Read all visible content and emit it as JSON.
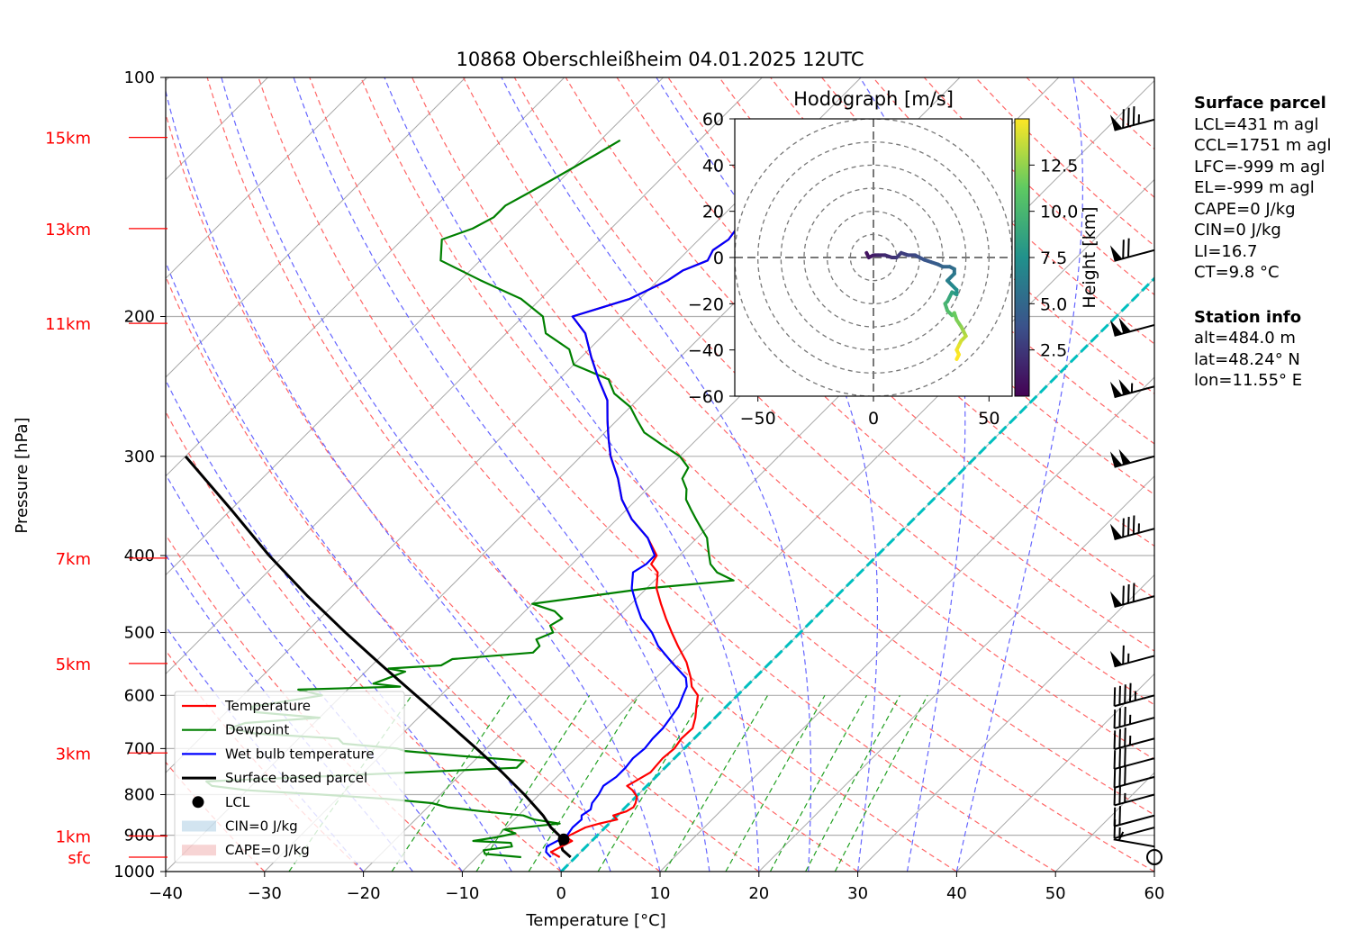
{
  "title": "10868 Oberschleißheim 04.01.2025 12UTC",
  "colors": {
    "temperature": "#ff0000",
    "dewpoint": "#008000",
    "wetbulb": "#0000ff",
    "parcel": "#000000",
    "dry_adiabat": "#ff6666",
    "moist_adiabat": "#6666ff",
    "mixing_ratio": "#22a022",
    "isotherm": "#999999",
    "zero_isotherm": "#00bfbf",
    "height_labels": "#ff0000"
  },
  "chart_data": {
    "type": "line",
    "title": "10868 Oberschleißheim 04.01.2025 12UTC",
    "xlabel": "Temperature [°C]",
    "ylabel": "Pressure [hPa]",
    "xlim": [
      -40,
      60
    ],
    "ylim": [
      1000,
      100
    ],
    "y_scale": "log",
    "skew": "45° isotherms",
    "grid": true,
    "x_ticks": [
      "−40",
      "−30",
      "−20",
      "−10",
      "0",
      "10",
      "20",
      "30",
      "40",
      "50",
      "60"
    ],
    "y_ticks": [
      "100",
      "200",
      "300",
      "400",
      "500",
      "600",
      "700",
      "800",
      "900",
      "1000"
    ],
    "height_labels": [
      {
        "label": "15km",
        "p": 119
      },
      {
        "label": "13km",
        "p": 155
      },
      {
        "label": "11km",
        "p": 204
      },
      {
        "label": "7km",
        "p": 403
      },
      {
        "label": "5km",
        "p": 547
      },
      {
        "label": "3km",
        "p": 709
      },
      {
        "label": "1km",
        "p": 902
      },
      {
        "label": "sfc",
        "p": 959
      }
    ],
    "series": [
      {
        "name": "Temperature",
        "p": [
          959,
          945,
          930,
          915,
          905,
          880,
          870,
          860,
          850,
          840,
          830,
          820,
          805,
          790,
          780,
          765,
          750,
          720,
          700,
          680,
          660,
          640,
          620,
          600,
          585,
          570,
          545,
          520,
          500,
          480,
          460,
          440,
          420,
          410,
          400,
          380,
          360,
          340,
          320,
          300,
          285,
          270,
          255,
          240,
          225,
          210,
          200,
          195,
          190,
          185,
          180,
          175,
          170,
          165,
          160,
          155,
          150,
          145,
          140,
          135,
          130,
          125,
          120,
          117
        ],
        "t": [
          -1.6,
          -3.0,
          -2.5,
          -2.0,
          -3.0,
          -2.0,
          -1.0,
          0.4,
          -0.4,
          0.5,
          0.8,
          0.6,
          0.1,
          -1.0,
          -2.0,
          -1.5,
          -1.0,
          -1.2,
          -1.0,
          -1.3,
          -1.2,
          -2.0,
          -3.0,
          -4.0,
          -5.5,
          -6.5,
          -8.5,
          -11.0,
          -13.0,
          -15.0,
          -17.0,
          -19.0,
          -20.5,
          -22.0,
          -22.3,
          -25.0,
          -28.5,
          -31.5,
          -34.0,
          -37.0,
          -39.0,
          -41.0,
          -43.0,
          -46.0,
          -49.0,
          -52.0,
          -55.0,
          -53.0,
          -51.0,
          -50.0,
          -49.0,
          -48.5,
          -47.0,
          -47.5,
          -47.0,
          -47.3,
          -44.0,
          -42.0,
          -40.0,
          -39.0,
          -38.0,
          -37.0,
          -35.0,
          -36.0
        ]
      },
      {
        "name": "Dewpoint",
        "p": [
          959,
          950,
          940,
          930,
          920,
          915,
          905,
          895,
          885,
          870,
          860,
          850,
          840,
          830,
          820,
          810,
          800,
          790,
          780,
          770,
          760,
          750,
          740,
          725,
          715,
          705,
          700,
          690,
          680,
          670,
          660,
          650,
          640,
          630,
          620,
          610,
          600,
          590,
          585,
          580,
          570,
          560,
          555,
          550,
          540,
          530,
          520,
          510,
          500,
          490,
          480,
          470,
          460,
          450,
          440,
          430,
          420,
          410,
          400,
          390,
          380,
          370,
          360,
          350,
          340,
          330,
          320,
          310,
          300,
          290,
          280,
          270,
          260,
          250,
          240,
          230,
          220,
          210,
          200,
          190,
          180,
          170,
          160,
          155,
          150,
          145,
          140,
          135,
          130,
          125,
          120
        ],
        "t": [
          -5.5,
          -9.5,
          -10.0,
          -7.5,
          -8.0,
          -12.0,
          -10.0,
          -8.5,
          -10.0,
          -5.0,
          -8.0,
          -9.5,
          -14.0,
          -18.0,
          -20.0,
          -25.0,
          -32.0,
          -40.0,
          -44.0,
          -45.0,
          -35.0,
          -25.0,
          -15.0,
          -15.0,
          -22.0,
          -28.0,
          -29.0,
          -35.0,
          -36.0,
          -45.0,
          -48.0,
          -47.0,
          -40.0,
          -47.0,
          -48.0,
          -45.0,
          -42.0,
          -45.0,
          -35.0,
          -38.0,
          -37.0,
          -36.0,
          -38.0,
          -33.0,
          -32.5,
          -25.0,
          -25.0,
          -26.0,
          -25.0,
          -26.0,
          -25.5,
          -27.0,
          -30.0,
          -25.0,
          -20.0,
          -12.0,
          -14.5,
          -16.0,
          -17.0,
          -18.0,
          -19.0,
          -20.5,
          -22.0,
          -23.5,
          -25.0,
          -26.0,
          -27.5,
          -28.0,
          -30.0,
          -33.0,
          -36.0,
          -38.0,
          -40.0,
          -43.0,
          -45.0,
          -50.0,
          -52.0,
          -56.0,
          -58.0,
          -62.0,
          -68.0,
          -74.0,
          -76.0,
          -74.0,
          -73.0,
          -73.0,
          -72.0,
          -71.0,
          -70.0,
          -69.0,
          -68.0
        ]
      },
      {
        "name": "Wet bulb temperature",
        "p": [
          959,
          945,
          930,
          915,
          905,
          880,
          860,
          850,
          835,
          820,
          800,
          780,
          760,
          740,
          720,
          700,
          680,
          660,
          640,
          620,
          600,
          585,
          570,
          545,
          520,
          500,
          480,
          460,
          440,
          420,
          410,
          400,
          380,
          360,
          340,
          320,
          300,
          285,
          270,
          255,
          240,
          225,
          210,
          200,
          195,
          190,
          185,
          180,
          175,
          170,
          165,
          160,
          155,
          150,
          145,
          140,
          135,
          130,
          125,
          120,
          117
        ],
        "t": [
          -2.5,
          -3.5,
          -4.0,
          -3.5,
          -3.0,
          -3.3,
          -3.2,
          -3.6,
          -3.3,
          -3.8,
          -4.0,
          -4.4,
          -4.0,
          -4.0,
          -4.2,
          -4.0,
          -4.2,
          -4.2,
          -4.5,
          -4.8,
          -5.5,
          -6.0,
          -7.0,
          -10.0,
          -13.0,
          -15.0,
          -17.5,
          -19.5,
          -21.5,
          -23.0,
          -22.5,
          -22.5,
          -25.0,
          -28.5,
          -31.5,
          -34.0,
          -37.0,
          -39.0,
          -41.0,
          -43.0,
          -46.0,
          -49.0,
          -52.0,
          -55.0,
          -53.0,
          -51.0,
          -50.0,
          -49.0,
          -48.5,
          -47.0,
          -47.5,
          -47.0,
          -47.3,
          -44.0,
          -42.0,
          -40.0,
          -39.0,
          -38.0,
          -37.0,
          -35.0,
          -36.0
        ]
      },
      {
        "name": "Surface based parcel",
        "p": [
          959,
          940,
          920,
          905,
          880,
          850,
          800,
          750,
          700,
          650,
          600,
          550,
          500,
          450,
          400,
          350,
          300
        ],
        "t": [
          -0.5,
          -2.0,
          -3.0,
          -3.5,
          -5.5,
          -7.5,
          -11.5,
          -16.0,
          -21.0,
          -26.5,
          -32.5,
          -39.0,
          -46.0,
          -53.5,
          -61.5,
          -70.0,
          -80.0
        ]
      }
    ],
    "lcl": {
      "name": "LCL",
      "p": 911,
      "t": -3.0
    },
    "legend": {
      "position": "lower-left",
      "entries": [
        "Temperature",
        "Dewpoint",
        "Wet bulb temperature",
        "Surface based parcel",
        "LCL",
        "CIN=0 J/kg",
        "CAPE=0 J/kg"
      ]
    },
    "wind_barbs": [
      {
        "p": 959,
        "speed_kt": 0
      },
      {
        "p": 930,
        "speed_kt": 5
      },
      {
        "p": 880,
        "speed_kt": 15
      },
      {
        "p": 850,
        "speed_kt": 20
      },
      {
        "p": 800,
        "speed_kt": 25
      },
      {
        "p": 760,
        "speed_kt": 30
      },
      {
        "p": 720,
        "speed_kt": 30
      },
      {
        "p": 680,
        "speed_kt": 35
      },
      {
        "p": 640,
        "speed_kt": 35
      },
      {
        "p": 600,
        "speed_kt": 45
      },
      {
        "p": 535,
        "speed_kt": 65
      },
      {
        "p": 450,
        "speed_kt": 80
      },
      {
        "p": 370,
        "speed_kt": 85
      },
      {
        "p": 300,
        "speed_kt": 100
      },
      {
        "p": 245,
        "speed_kt": 105
      },
      {
        "p": 205,
        "speed_kt": 100
      },
      {
        "p": 165,
        "speed_kt": 70
      },
      {
        "p": 113,
        "speed_kt": 85
      }
    ],
    "hodograph": {
      "title": "Hodograph [m/s]",
      "xlim": [
        -60,
        60
      ],
      "ylim": [
        -60,
        60
      ],
      "x_ticks": [
        "−50",
        "0",
        "50"
      ],
      "y_ticks": [
        "60",
        "40",
        "20",
        "0",
        "−20",
        "−40",
        "−60"
      ],
      "rings_ms": [
        10,
        20,
        30,
        40,
        50,
        60
      ],
      "u": [
        -3,
        -2,
        0,
        2,
        5,
        8,
        10,
        12,
        15,
        18,
        20,
        22,
        25,
        28,
        30,
        33,
        35,
        35,
        32,
        34,
        36,
        36,
        34,
        33,
        32,
        31,
        32,
        34,
        35,
        36,
        38,
        39,
        40,
        38,
        37,
        36,
        37,
        36
      ],
      "v": [
        2,
        0,
        1,
        1,
        1,
        0,
        0,
        2,
        1,
        1,
        0,
        -1,
        -2,
        -3,
        -4,
        -4,
        -5,
        -7,
        -10,
        -12,
        -14,
        -16,
        -15,
        -17,
        -19,
        -20,
        -23,
        -25,
        -24,
        -27,
        -30,
        -32,
        -34,
        -36,
        -38,
        -40,
        -42,
        -44
      ],
      "height_km": [
        0.5,
        0.8,
        1.0,
        1.3,
        1.6,
        1.9,
        2.2,
        2.5,
        2.8,
        3.1,
        3.4,
        3.7,
        4.0,
        4.3,
        4.6,
        4.9,
        5.2,
        5.6,
        6.0,
        6.5,
        7.0,
        7.5,
        8.0,
        8.5,
        9.0,
        9.5,
        10.0,
        10.5,
        11.0,
        11.5,
        12.0,
        12.5,
        13.0,
        13.5,
        14.0,
        14.5,
        14.8,
        15.0
      ],
      "colorbar": {
        "label": "Height [km]",
        "ticks": [
          "2.5",
          "5.0",
          "7.5",
          "10.0",
          "12.5"
        ],
        "min": 0,
        "max": 15
      }
    }
  },
  "info": {
    "surface_header": "Surface parcel",
    "surface_lines": [
      "LCL=431 m agl",
      "CCL=1751 m agl",
      "LFC=-999 m agl",
      "EL=-999 m agl",
      "CAPE=0 J/kg",
      "CIN=0 J/kg",
      "LI=16.7",
      "CT=9.8 °C"
    ],
    "station_header": "Station info",
    "station_lines": [
      "alt=484.0 m",
      "lat=48.24° N",
      "lon=11.55° E"
    ]
  }
}
